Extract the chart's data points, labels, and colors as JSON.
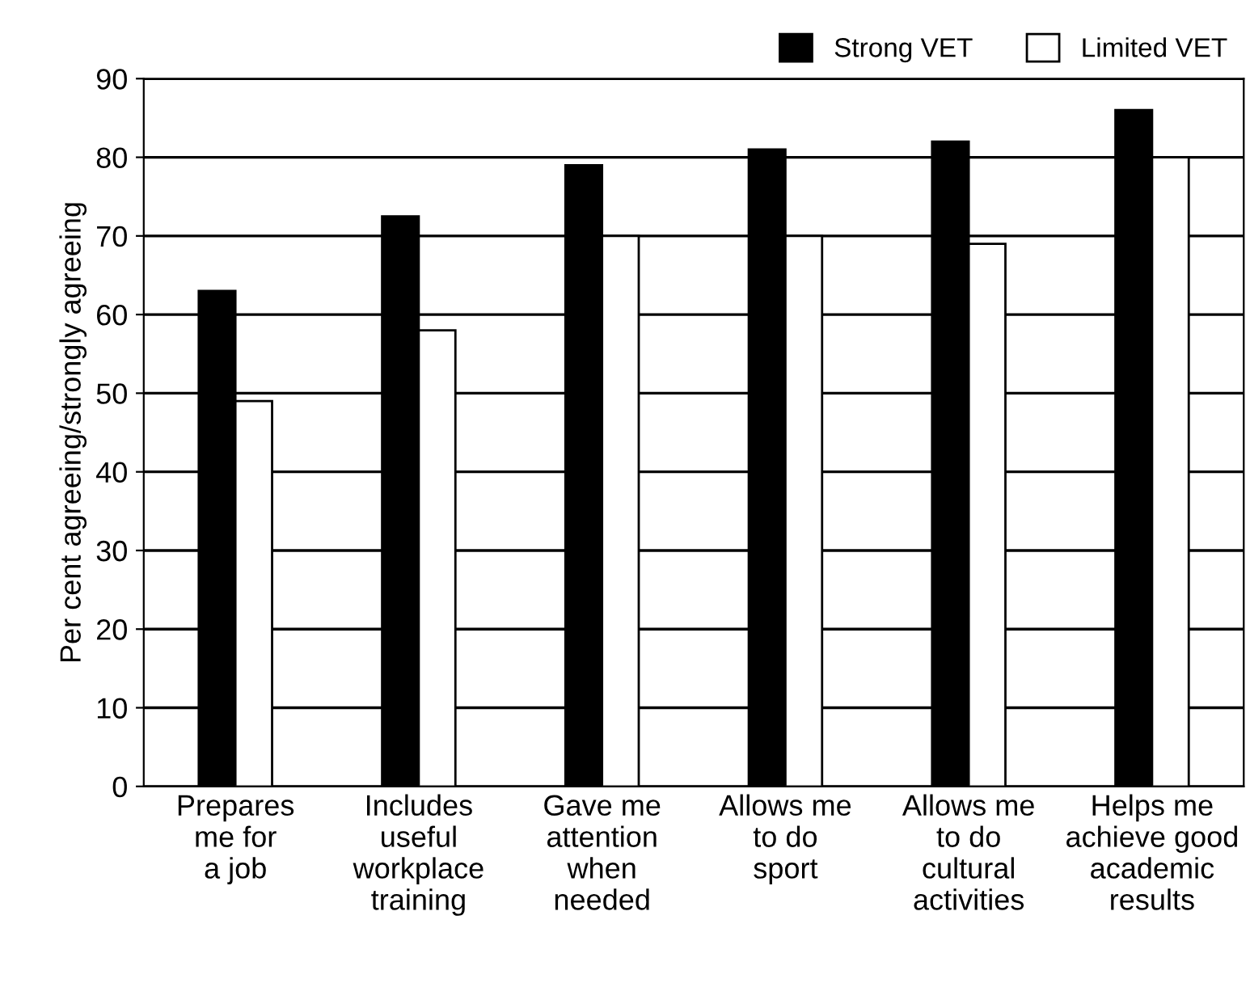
{
  "chart_data": {
    "type": "bar",
    "ylabel": "Per cent agreeing/strongly agreeing",
    "categories": [
      "Prepares\nme for\na job",
      "Includes\nuseful\nworkplace\ntraining",
      "Gave me\nattention\nwhen\nneeded",
      "Allows me\nto do\nsport",
      "Allows me\nto do\ncultural\nactivities",
      "Helps me\nachieve good\nacademic\nresults"
    ],
    "series": [
      {
        "name": "Strong VET",
        "color": "#000000",
        "values": [
          63,
          72.5,
          79,
          81,
          82,
          86
        ]
      },
      {
        "name": "Limited VET",
        "color": "#ffffff",
        "values": [
          49,
          58,
          70,
          70,
          69,
          80
        ]
      }
    ],
    "ylim": [
      0,
      90
    ],
    "yticks": [
      0,
      10,
      20,
      30,
      40,
      50,
      60,
      70,
      80,
      90
    ],
    "grid": "y",
    "legend": "top right"
  }
}
